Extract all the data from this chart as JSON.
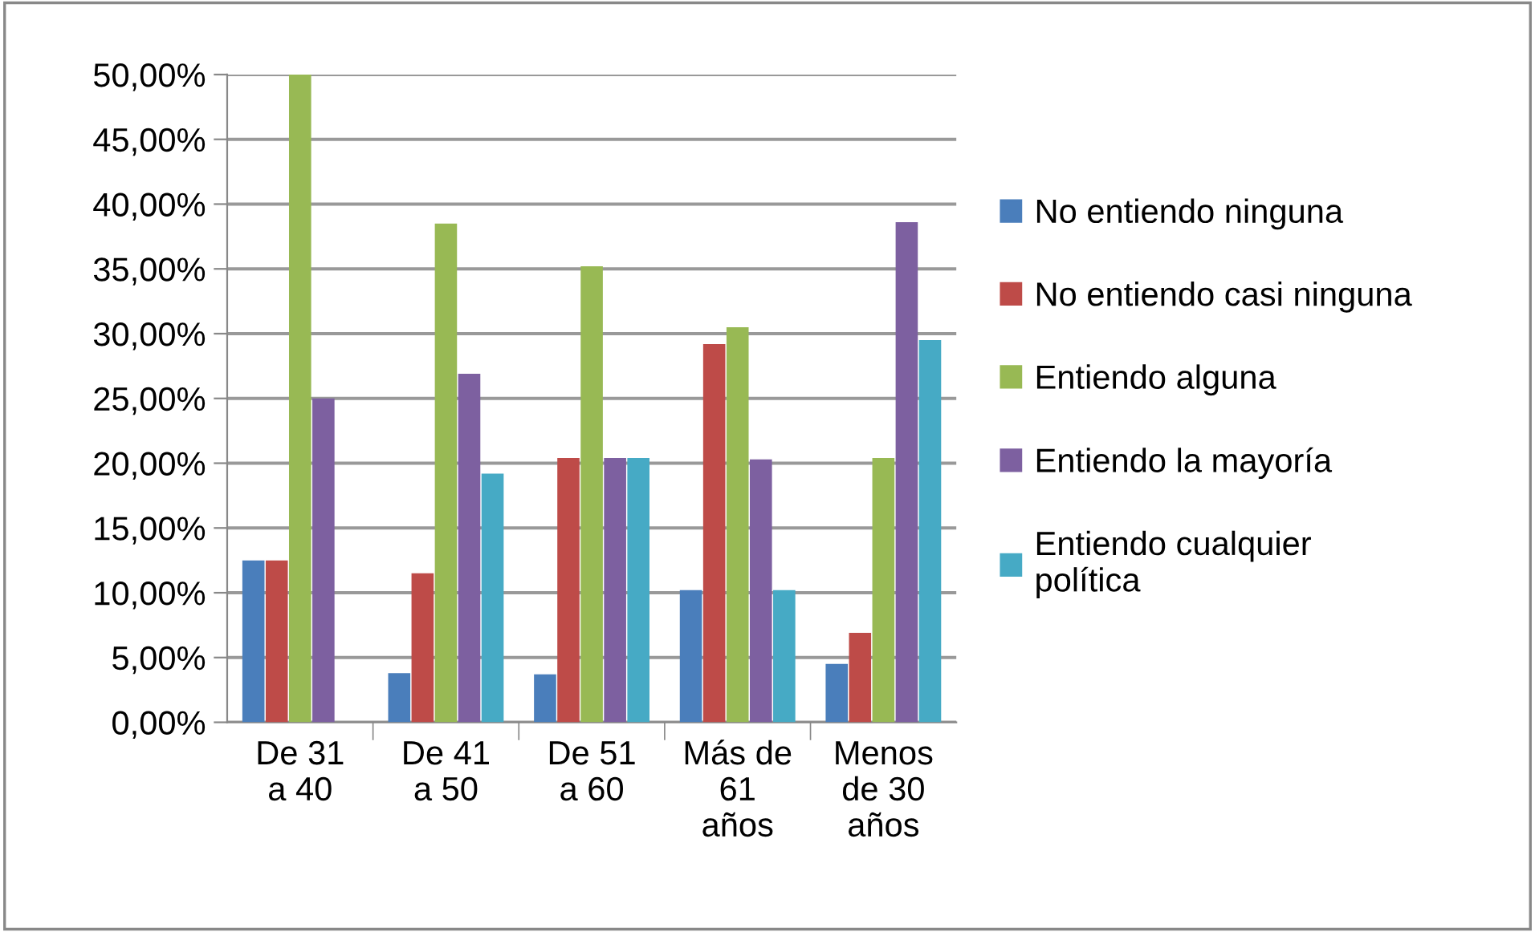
{
  "chart_data": {
    "type": "bar",
    "categories": [
      "De 31\na 40",
      "De 41\na 50",
      "De 51\na 60",
      "Más de\n61\naños",
      "Menos\nde 30\naños"
    ],
    "series": [
      {
        "name": "No entiendo ninguna",
        "color": "#4a7ebb",
        "values": [
          12.5,
          3.8,
          3.7,
          10.2,
          4.5
        ]
      },
      {
        "name": "No entiendo casi ninguna",
        "color": "#be4b48",
        "values": [
          12.5,
          11.5,
          20.4,
          29.2,
          6.9
        ]
      },
      {
        "name": "Entiendo alguna",
        "color": "#98b954",
        "values": [
          50,
          38.5,
          35.2,
          30.5,
          20.4
        ]
      },
      {
        "name": "Entiendo la mayoría",
        "color": "#7d60a0",
        "values": [
          25,
          26.9,
          20.4,
          20.3,
          38.6
        ]
      },
      {
        "name": "Entiendo cualquier\npolítica",
        "color": "#46aac5",
        "values": [
          0,
          19.2,
          20.4,
          10.2,
          29.5
        ]
      }
    ],
    "ylim": [
      0,
      50
    ],
    "yticks": [
      {
        "value": 0,
        "label": "0,00%"
      },
      {
        "value": 5,
        "label": "5,00%"
      },
      {
        "value": 10,
        "label": "10,00%"
      },
      {
        "value": 15,
        "label": "15,00%"
      },
      {
        "value": 20,
        "label": "20,00%"
      },
      {
        "value": 25,
        "label": "25,00%"
      },
      {
        "value": 30,
        "label": "30,00%"
      },
      {
        "value": 35,
        "label": "35,00%"
      },
      {
        "value": 40,
        "label": "40,00%"
      },
      {
        "value": 45,
        "label": "45,00%"
      },
      {
        "value": 50,
        "label": "50,00%"
      }
    ],
    "grid": "y",
    "legend": "right"
  }
}
